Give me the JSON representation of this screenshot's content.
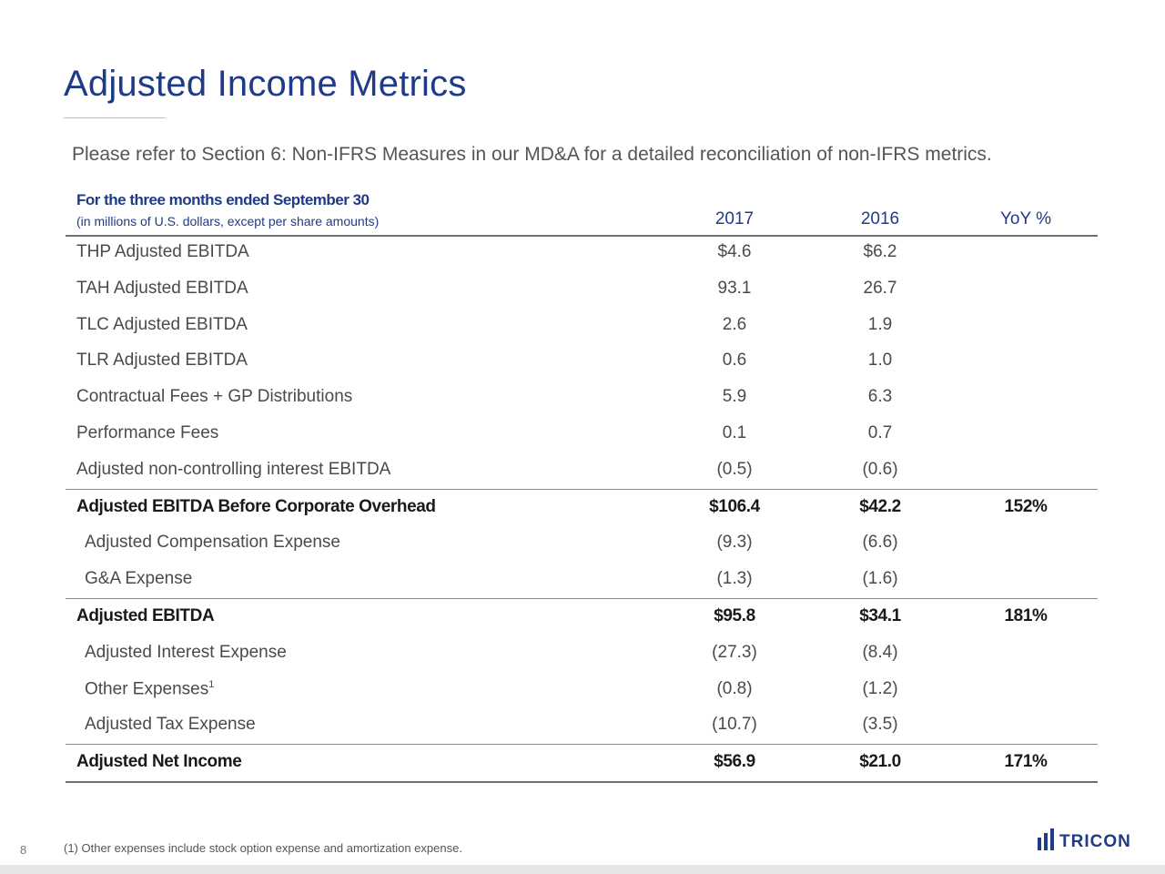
{
  "header": {
    "title": "Adjusted Income Metrics",
    "intro": "Please refer to Section 6: Non-IFRS Measures in our MD&A for a detailed reconciliation of non-IFRS metrics."
  },
  "table": {
    "period": "For the three months ended September 30",
    "units": "(in millions of U.S. dollars, except per share amounts)",
    "columns": [
      "2017",
      "2016",
      "YoY %"
    ],
    "rows": [
      {
        "label": "THP Adjusted EBITDA",
        "y2017": "$4.6",
        "y2016": "$6.2",
        "yoy": ""
      },
      {
        "label": "TAH Adjusted EBITDA",
        "y2017": "93.1",
        "y2016": "26.7",
        "yoy": ""
      },
      {
        "label": "TLC Adjusted EBITDA",
        "y2017": "2.6",
        "y2016": "1.9",
        "yoy": ""
      },
      {
        "label": "TLR Adjusted EBITDA",
        "y2017": "0.6",
        "y2016": "1.0",
        "yoy": ""
      },
      {
        "label": "Contractual Fees + GP Distributions",
        "y2017": "5.9",
        "y2016": "6.3",
        "yoy": ""
      },
      {
        "label": "Performance Fees",
        "y2017": "0.1",
        "y2016": "0.7",
        "yoy": ""
      },
      {
        "label": "Adjusted non-controlling interest EBITDA",
        "y2017": "(0.5)",
        "y2016": "(0.6)",
        "yoy": ""
      },
      {
        "label": "Adjusted EBITDA Before Corporate Overhead",
        "y2017": "$106.4",
        "y2016": "$42.2",
        "yoy": "152%"
      },
      {
        "label": "Adjusted Compensation Expense",
        "y2017": "(9.3)",
        "y2016": "(6.6)",
        "yoy": ""
      },
      {
        "label": "G&A Expense",
        "y2017": "(1.3)",
        "y2016": "(1.6)",
        "yoy": ""
      },
      {
        "label": "Adjusted EBITDA",
        "y2017": "$95.8",
        "y2016": "$34.1",
        "yoy": "181%"
      },
      {
        "label": "Adjusted Interest Expense",
        "y2017": "(27.3)",
        "y2016": "(8.4)",
        "yoy": ""
      },
      {
        "label": "Other Expenses",
        "footnote_mark": "1",
        "y2017": "(0.8)",
        "y2016": "(1.2)",
        "yoy": ""
      },
      {
        "label": "Adjusted Tax Expense",
        "y2017": "(10.7)",
        "y2016": "(3.5)",
        "yoy": ""
      },
      {
        "label": "Adjusted Net Income",
        "y2017": "$56.9",
        "y2016": "$21.0",
        "yoy": "171%"
      }
    ]
  },
  "footer": {
    "page_number": "8",
    "footnote": "(1) Other expenses include stock option expense and amortization expense.",
    "logo_text": "TRICON"
  },
  "colors": {
    "brand_blue": "#1f3b87"
  }
}
